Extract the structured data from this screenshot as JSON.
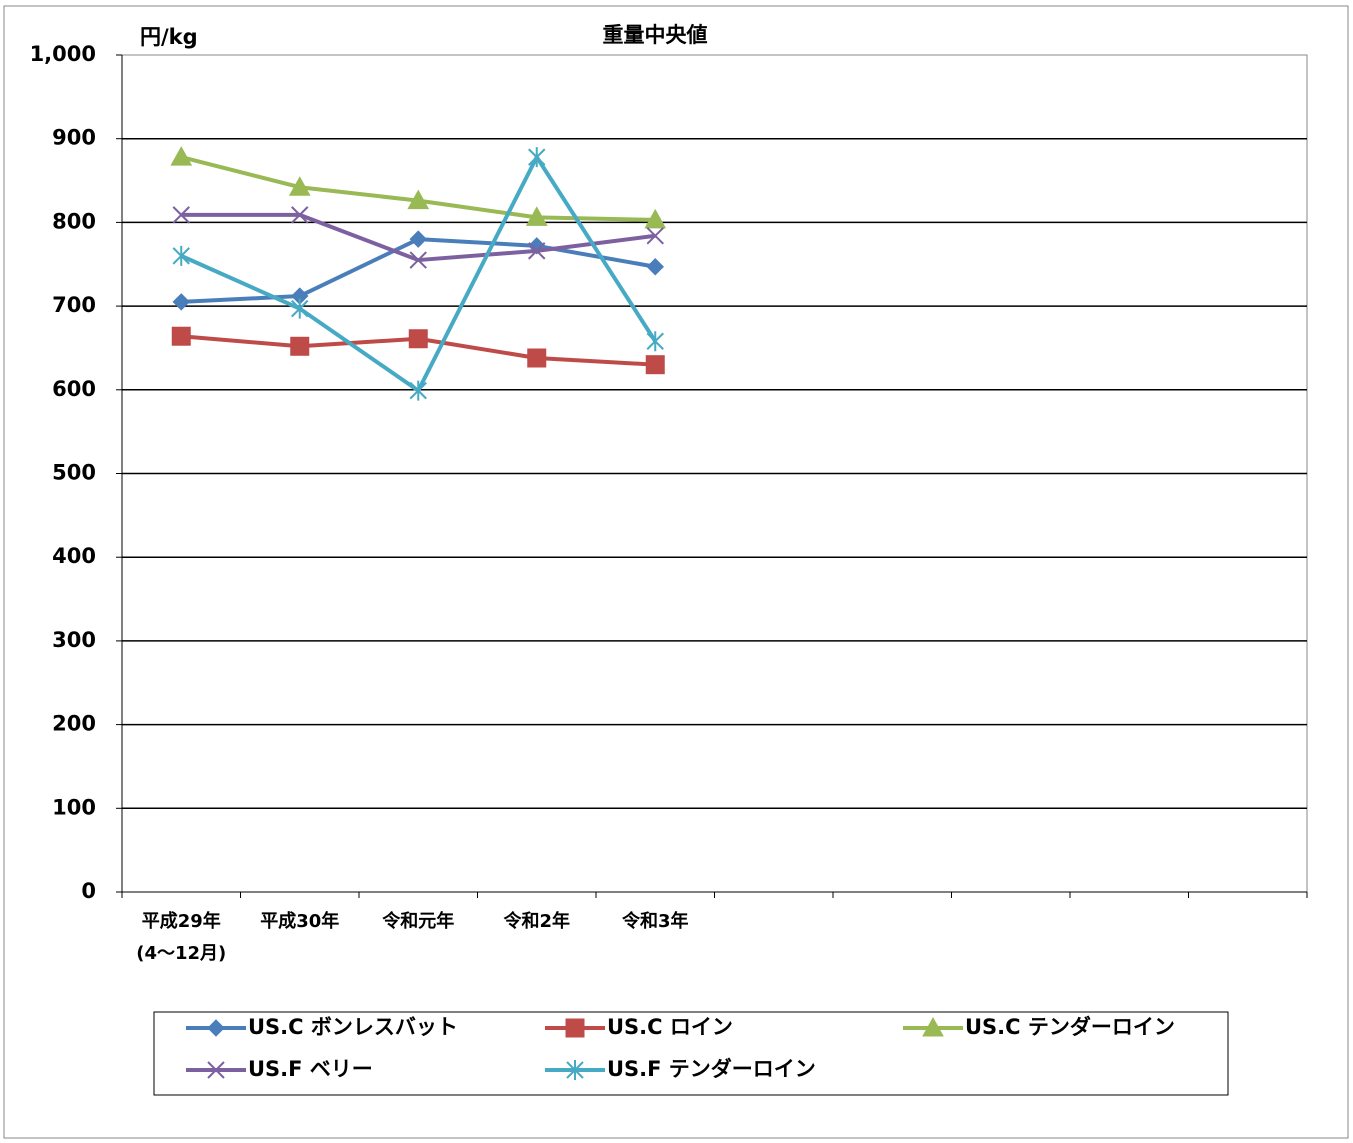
{
  "chart_data": {
    "type": "line",
    "title": "重量中央値",
    "y_label": "円/kg",
    "categories": [
      "平成29年\n(4～12月)",
      "平成30年",
      "令和元年",
      "令和2年",
      "令和3年",
      null,
      null,
      null,
      null,
      null
    ],
    "series": [
      {
        "name": "US.C ボンレスバット",
        "color": "#4a7ebb",
        "marker": "diamond",
        "values": [
          705,
          712,
          780,
          772,
          747,
          null,
          null,
          null,
          null,
          null
        ]
      },
      {
        "name": "US.C ロイン",
        "color": "#be4b48",
        "marker": "square",
        "values": [
          664,
          652,
          661,
          638,
          630,
          null,
          null,
          null,
          null,
          null
        ]
      },
      {
        "name": "US.C テンダーロイン",
        "color": "#98b954",
        "marker": "triangle",
        "values": [
          878,
          842,
          826,
          806,
          803,
          null,
          null,
          null,
          null,
          null
        ]
      },
      {
        "name": "US.F ベリー",
        "color": "#7d60a0",
        "marker": "x",
        "values": [
          809,
          809,
          755,
          766,
          784,
          null,
          null,
          null,
          null,
          null
        ]
      },
      {
        "name": "US.F テンダーロイン",
        "color": "#46aac5",
        "marker": "star",
        "values": [
          760,
          697,
          599,
          878,
          658,
          null,
          null,
          null,
          null,
          null
        ]
      }
    ],
    "ylim": [
      0,
      1000
    ],
    "yticks": [
      0,
      100,
      200,
      300,
      400,
      500,
      600,
      700,
      800,
      900,
      {
        "value": 1000,
        "label": "1,000"
      }
    ],
    "grid": true,
    "legend": "bottom"
  }
}
